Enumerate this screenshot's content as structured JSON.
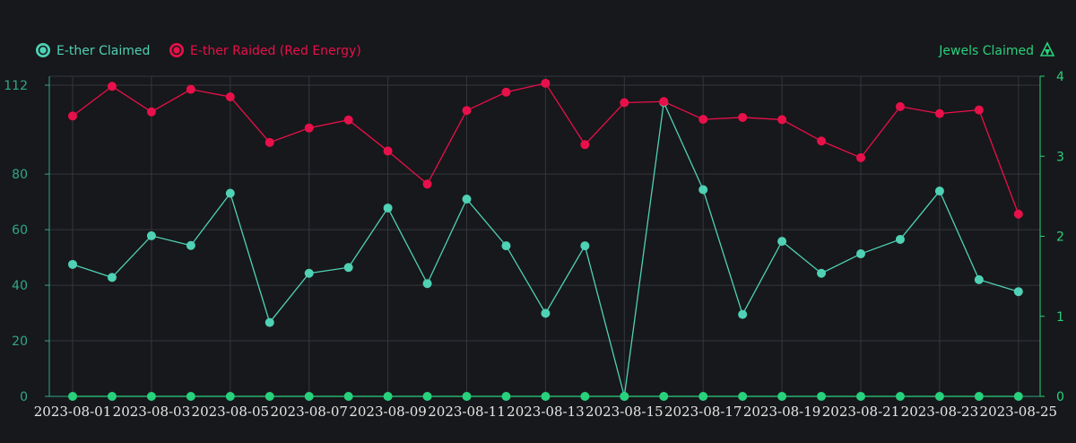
{
  "colors": {
    "background": "#17181b",
    "grid": "#33363c",
    "axis_right": "#28d17c",
    "axis_left": "#2fa889",
    "x_labels": "#e6e6e6"
  },
  "legend": {
    "left": [
      {
        "label": "E-ther Claimed",
        "color": "#4fd1b5",
        "icon": "ether-claimed-icon"
      },
      {
        "label": "E-ther Raided (Red Energy)",
        "color": "#e8104a",
        "icon": "ether-raided-icon"
      }
    ],
    "right": {
      "label": "Jewels Claimed",
      "color": "#28d17c",
      "icon": "jewels-claimed-icon"
    }
  },
  "chart_data": {
    "type": "line",
    "x": [
      "2023-08-01",
      "2023-08-02",
      "2023-08-03",
      "2023-08-04",
      "2023-08-05",
      "2023-08-06",
      "2023-08-07",
      "2023-08-08",
      "2023-08-09",
      "2023-08-10",
      "2023-08-11",
      "2023-08-12",
      "2023-08-13",
      "2023-08-14",
      "2023-08-15",
      "2023-08-16",
      "2023-08-17",
      "2023-08-18",
      "2023-08-19",
      "2023-08-20",
      "2023-08-21",
      "2023-08-22",
      "2023-08-23",
      "2023-08-24",
      "2023-08-25"
    ],
    "x_tick_labels": [
      "2023-08-01",
      "2023-08-03",
      "2023-08-05",
      "2023-08-07",
      "2023-08-09",
      "2023-08-11",
      "2023-08-13",
      "2023-08-15",
      "2023-08-17",
      "2023-08-19",
      "2023-08-21",
      "2023-08-23",
      "2023-08-25"
    ],
    "y_left": {
      "range": [
        0,
        112
      ],
      "ticks": [
        0,
        20,
        40,
        60,
        80,
        112
      ]
    },
    "y_right": {
      "range": [
        0,
        4
      ],
      "ticks": [
        0,
        1,
        2,
        3,
        4
      ]
    },
    "grid": true,
    "legend_position": "top",
    "series": [
      {
        "name": "E-ther Claimed",
        "axis": "left",
        "color": "#4fd1b5",
        "values": [
          47.5,
          42.8,
          57.8,
          54.3,
          73.1,
          26.6,
          44.3,
          46.4,
          67.8,
          40.6,
          71.0,
          54.2,
          29.9,
          54.2,
          0,
          105.8,
          74.4,
          29.5,
          55.8,
          44.3,
          51.3,
          56.5,
          73.9,
          42.0,
          37.7
        ]
      },
      {
        "name": "E-ther Raided (Red Energy)",
        "axis": "left",
        "color": "#e8104a",
        "values": [
          100.9,
          111.6,
          102.4,
          110.5,
          107.8,
          91.4,
          96.6,
          99.5,
          88.3,
          76.4,
          102.9,
          109.5,
          112.7,
          90.6,
          105.7,
          106.1,
          99.7,
          100.4,
          99.6,
          91.9,
          85.9,
          104.3,
          101.8,
          103.1,
          65.6
        ]
      },
      {
        "name": "Jewels Claimed",
        "axis": "right",
        "color": "#28d17c",
        "values": [
          0,
          0,
          0,
          0,
          0,
          0,
          0,
          0,
          0,
          0,
          0,
          0,
          0,
          0,
          0,
          0,
          0,
          0,
          0,
          0,
          0,
          0,
          0,
          0,
          0
        ]
      }
    ]
  }
}
